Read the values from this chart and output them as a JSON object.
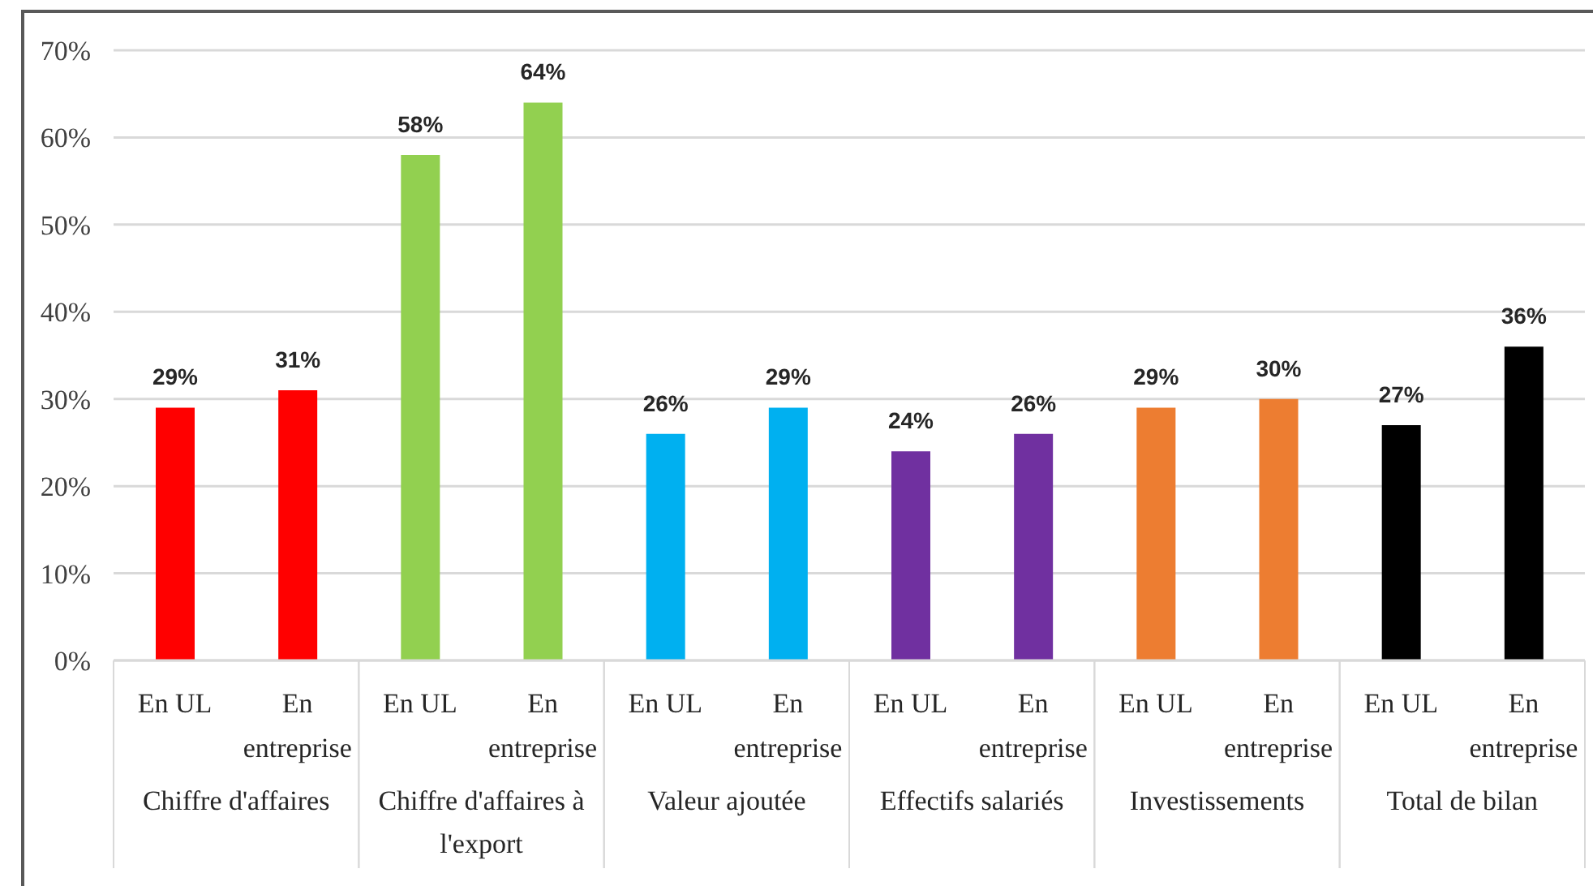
{
  "chart_data": {
    "type": "bar",
    "categories": [
      "En UL",
      "En entreprise",
      "En UL",
      "En entreprise",
      "En UL",
      "En entreprise",
      "En UL",
      "En entreprise",
      "En UL",
      "En entreprise",
      "En UL",
      "En entreprise"
    ],
    "values": [
      29,
      31,
      58,
      64,
      26,
      29,
      24,
      26,
      29,
      30,
      27,
      36
    ],
    "colors": [
      "#ff0000",
      "#ff0000",
      "#92d050",
      "#92d050",
      "#00b0f0",
      "#00b0f0",
      "#7030a0",
      "#7030a0",
      "#ed7d31",
      "#ed7d31",
      "#000000",
      "#000000"
    ],
    "value_labels": [
      "29%",
      "31%",
      "58%",
      "64%",
      "26%",
      "29%",
      "24%",
      "26%",
      "29%",
      "30%",
      "27%",
      "36%"
    ],
    "annotations": [
      "Chiffre d'affaires",
      "Chiffre d'affaires à l'export",
      "Valeur ajoutée",
      "Effectifs salariés",
      "Investissements",
      "Total de bilan"
    ],
    "ylim": [
      0,
      70
    ],
    "yticks": [
      {
        "value": 0,
        "label": "0%"
      },
      {
        "value": 10,
        "label": "10%"
      },
      {
        "value": 20,
        "label": "20%"
      },
      {
        "value": 30,
        "label": "30%"
      },
      {
        "value": 40,
        "label": "40%"
      },
      {
        "value": 50,
        "label": "50%"
      },
      {
        "value": 60,
        "label": "60%"
      },
      {
        "value": 70,
        "label": "70%"
      }
    ],
    "grid": "y"
  }
}
